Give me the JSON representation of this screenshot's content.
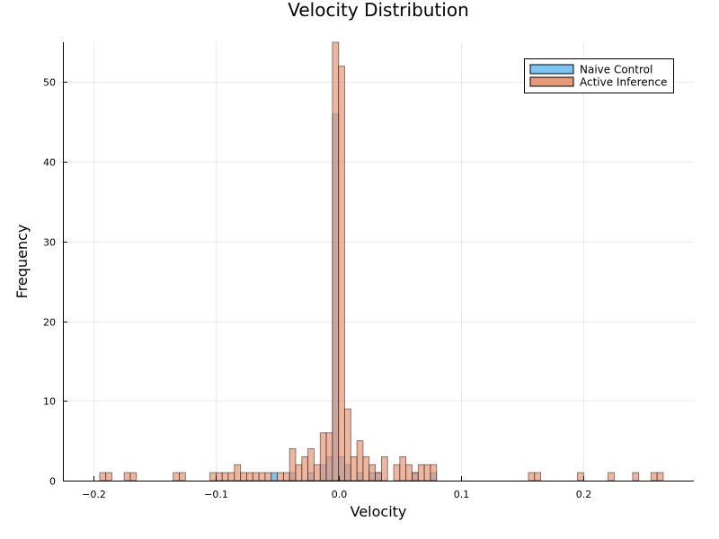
{
  "chart_data": {
    "type": "bar",
    "title": "Velocity Distribution",
    "xlabel": "Velocity",
    "ylabel": "Frequency",
    "xlim": [
      -0.225,
      0.29
    ],
    "ylim": [
      0,
      55
    ],
    "xticks": [
      -0.2,
      -0.1,
      0.0,
      0.1,
      0.2
    ],
    "xtick_labels": [
      "−0.2",
      "−0.1",
      "0.0",
      "0.1",
      "0.2"
    ],
    "yticks": [
      0,
      10,
      20,
      30,
      40,
      50
    ],
    "ytick_labels": [
      "0",
      "10",
      "20",
      "30",
      "40",
      "50"
    ],
    "grid": true,
    "legend_position": "top-right",
    "bin_width": 0.005,
    "series": [
      {
        "name": "Naive Control",
        "color": "#7fc4f0",
        "edge_color": "#000000",
        "bins": [
          {
            "x0": -0.055,
            "x1": -0.05,
            "count": 1
          },
          {
            "x0": -0.04,
            "x1": -0.035,
            "count": 1
          },
          {
            "x0": -0.025,
            "x1": -0.02,
            "count": 1
          },
          {
            "x0": -0.015,
            "x1": -0.01,
            "count": 2
          },
          {
            "x0": -0.01,
            "x1": -0.005,
            "count": 3
          },
          {
            "x0": -0.005,
            "x1": 0.0,
            "count": 46
          },
          {
            "x0": 0.0,
            "x1": 0.005,
            "count": 3
          },
          {
            "x0": 0.005,
            "x1": 0.01,
            "count": 2
          },
          {
            "x0": 0.015,
            "x1": 0.02,
            "count": 1
          },
          {
            "x0": 0.025,
            "x1": 0.03,
            "count": 1
          },
          {
            "x0": 0.03,
            "x1": 0.035,
            "count": 1
          },
          {
            "x0": 0.06,
            "x1": 0.065,
            "count": 1
          },
          {
            "x0": 0.075,
            "x1": 0.08,
            "count": 1
          }
        ]
      },
      {
        "name": "Active Inference",
        "color": "#e8997a",
        "edge_color": "#000000",
        "bins": [
          {
            "x0": -0.195,
            "x1": -0.19,
            "count": 1
          },
          {
            "x0": -0.19,
            "x1": -0.185,
            "count": 1
          },
          {
            "x0": -0.175,
            "x1": -0.17,
            "count": 1
          },
          {
            "x0": -0.17,
            "x1": -0.165,
            "count": 1
          },
          {
            "x0": -0.135,
            "x1": -0.13,
            "count": 1
          },
          {
            "x0": -0.13,
            "x1": -0.125,
            "count": 1
          },
          {
            "x0": -0.105,
            "x1": -0.1,
            "count": 1
          },
          {
            "x0": -0.1,
            "x1": -0.095,
            "count": 1
          },
          {
            "x0": -0.095,
            "x1": -0.09,
            "count": 1
          },
          {
            "x0": -0.09,
            "x1": -0.085,
            "count": 1
          },
          {
            "x0": -0.085,
            "x1": -0.08,
            "count": 2
          },
          {
            "x0": -0.08,
            "x1": -0.075,
            "count": 1
          },
          {
            "x0": -0.075,
            "x1": -0.07,
            "count": 1
          },
          {
            "x0": -0.07,
            "x1": -0.065,
            "count": 1
          },
          {
            "x0": -0.065,
            "x1": -0.06,
            "count": 1
          },
          {
            "x0": -0.06,
            "x1": -0.055,
            "count": 1
          },
          {
            "x0": -0.05,
            "x1": -0.045,
            "count": 1
          },
          {
            "x0": -0.045,
            "x1": -0.04,
            "count": 1
          },
          {
            "x0": -0.04,
            "x1": -0.035,
            "count": 4
          },
          {
            "x0": -0.035,
            "x1": -0.03,
            "count": 2
          },
          {
            "x0": -0.03,
            "x1": -0.025,
            "count": 3
          },
          {
            "x0": -0.025,
            "x1": -0.02,
            "count": 4
          },
          {
            "x0": -0.02,
            "x1": -0.015,
            "count": 2
          },
          {
            "x0": -0.015,
            "x1": -0.01,
            "count": 6
          },
          {
            "x0": -0.01,
            "x1": -0.005,
            "count": 6
          },
          {
            "x0": -0.005,
            "x1": 0.0,
            "count": 55
          },
          {
            "x0": 0.0,
            "x1": 0.005,
            "count": 52
          },
          {
            "x0": 0.005,
            "x1": 0.01,
            "count": 9
          },
          {
            "x0": 0.01,
            "x1": 0.015,
            "count": 3
          },
          {
            "x0": 0.015,
            "x1": 0.02,
            "count": 5
          },
          {
            "x0": 0.02,
            "x1": 0.025,
            "count": 3
          },
          {
            "x0": 0.025,
            "x1": 0.03,
            "count": 2
          },
          {
            "x0": 0.03,
            "x1": 0.035,
            "count": 1
          },
          {
            "x0": 0.035,
            "x1": 0.04,
            "count": 3
          },
          {
            "x0": 0.045,
            "x1": 0.05,
            "count": 2
          },
          {
            "x0": 0.05,
            "x1": 0.055,
            "count": 3
          },
          {
            "x0": 0.055,
            "x1": 0.06,
            "count": 2
          },
          {
            "x0": 0.06,
            "x1": 0.065,
            "count": 1
          },
          {
            "x0": 0.065,
            "x1": 0.07,
            "count": 2
          },
          {
            "x0": 0.07,
            "x1": 0.075,
            "count": 2
          },
          {
            "x0": 0.075,
            "x1": 0.08,
            "count": 2
          },
          {
            "x0": 0.155,
            "x1": 0.16,
            "count": 1
          },
          {
            "x0": 0.16,
            "x1": 0.165,
            "count": 1
          },
          {
            "x0": 0.195,
            "x1": 0.2,
            "count": 1
          },
          {
            "x0": 0.22,
            "x1": 0.225,
            "count": 1
          },
          {
            "x0": 0.24,
            "x1": 0.245,
            "count": 1
          },
          {
            "x0": 0.255,
            "x1": 0.26,
            "count": 1
          },
          {
            "x0": 0.26,
            "x1": 0.265,
            "count": 1
          }
        ]
      }
    ]
  }
}
